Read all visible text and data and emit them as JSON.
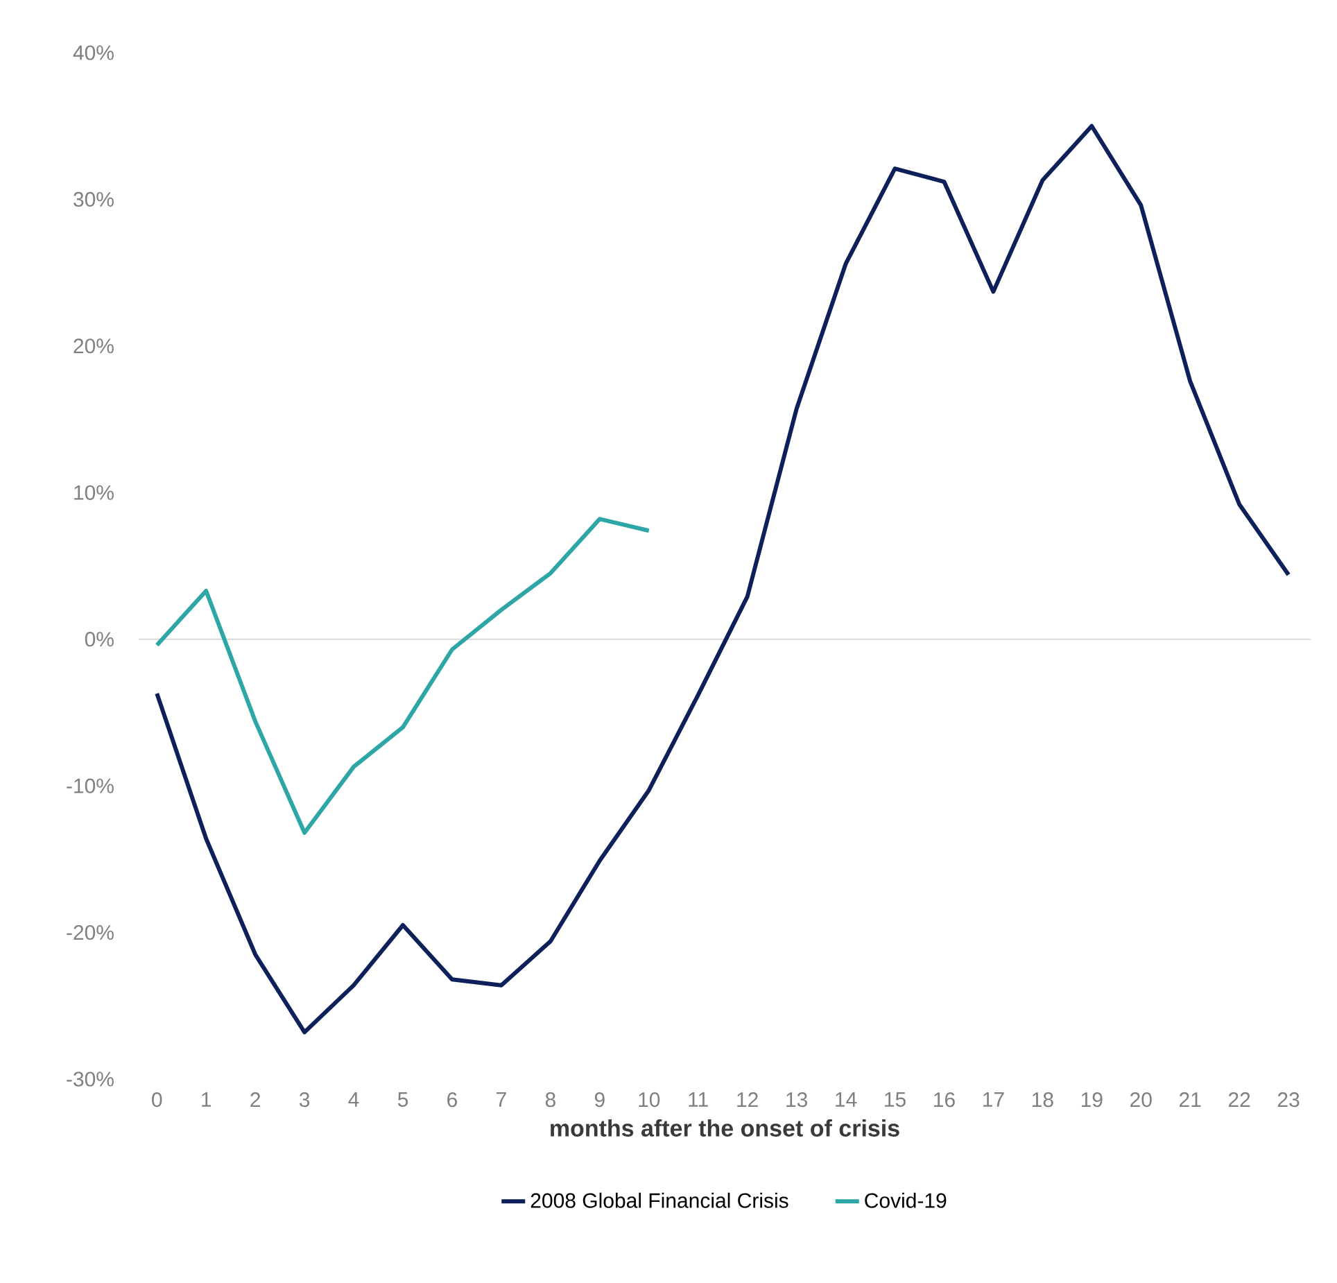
{
  "chart_data": {
    "type": "line",
    "xlabel": "months after the onset of crisis",
    "categories": [
      "0",
      "1",
      "2",
      "3",
      "4",
      "5",
      "6",
      "7",
      "8",
      "9",
      "10",
      "11",
      "12",
      "13",
      "14",
      "15",
      "16",
      "17",
      "18",
      "19",
      "20",
      "21",
      "22",
      "23"
    ],
    "series": [
      {
        "name": "2008 Global Financial Crisis",
        "color": "#0d2059",
        "values": [
          -3.7,
          -13.6,
          -21.5,
          -26.8,
          -23.6,
          -19.5,
          -23.2,
          -23.6,
          -20.6,
          -15.1,
          -10.3,
          -3.8,
          2.9,
          15.7,
          25.6,
          32.1,
          31.2,
          23.7,
          31.3,
          35.0,
          29.6,
          17.6,
          9.2,
          4.4
        ]
      },
      {
        "name": "Covid-19",
        "color": "#2ea6a6",
        "values": [
          -0.4,
          3.3,
          -5.6,
          -13.2,
          -8.7,
          -6.0,
          -0.7,
          2.0,
          4.5,
          8.2,
          7.4,
          null,
          null,
          null,
          null,
          null,
          null,
          null,
          null,
          null,
          null,
          null,
          null,
          null
        ]
      }
    ],
    "ylim": [
      -30,
      40
    ],
    "yticks": [
      {
        "value": -30,
        "label": "-30%"
      },
      {
        "value": -20,
        "label": "-20%"
      },
      {
        "value": -10,
        "label": "-10%"
      },
      {
        "value": 0,
        "label": "0%"
      },
      {
        "value": 10,
        "label": "10%"
      },
      {
        "value": 20,
        "label": "20%"
      },
      {
        "value": 30,
        "label": "30%"
      },
      {
        "value": 40,
        "label": "40%"
      }
    ],
    "ref_lines": [
      {
        "axis": "y",
        "value": 0,
        "color": "#d9d9d9"
      }
    ],
    "legend": "bottom",
    "marker": "none",
    "line_style": "solid"
  }
}
